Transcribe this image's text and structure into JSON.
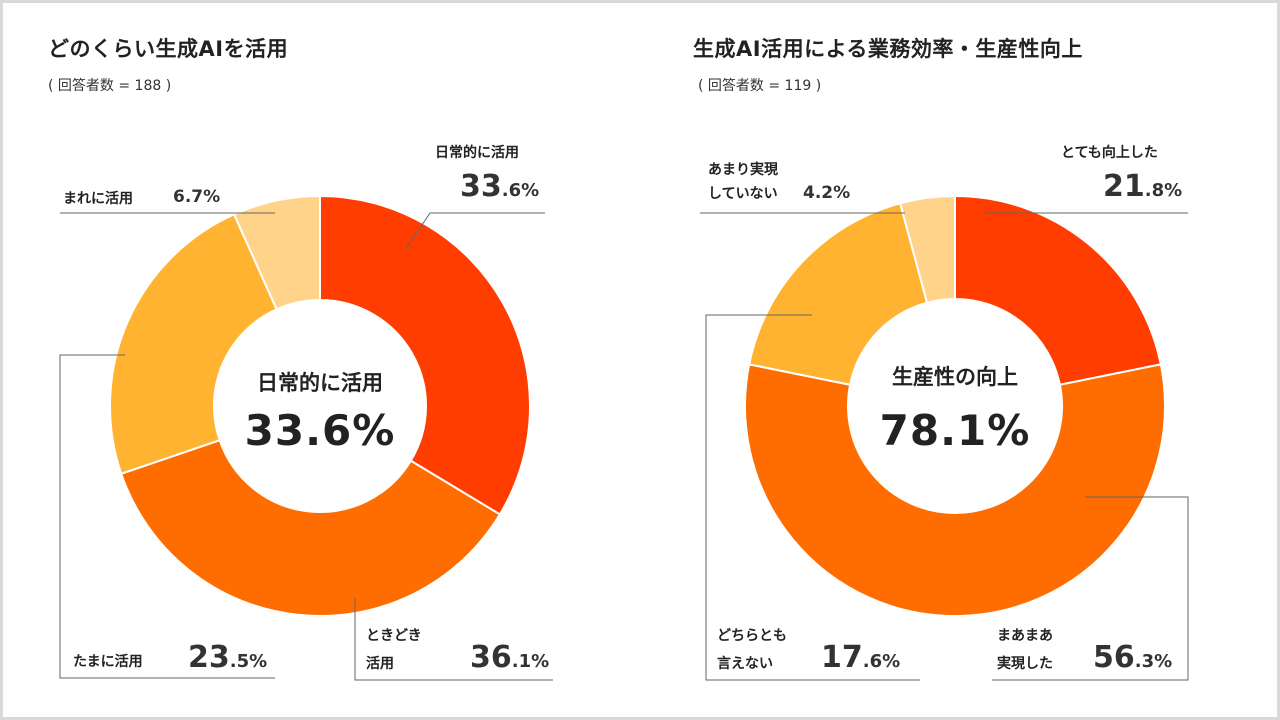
{
  "colors": {
    "c1": "#FF3D00",
    "c2": "#FF6D00",
    "c3": "#FFB330",
    "c4": "#FFD48A",
    "line": "#666666"
  },
  "chart_data": [
    {
      "type": "pie",
      "title": "どのくらい生成AIを活用",
      "subtitle": "( 回答者数 = 188 )",
      "center_label": "日常的に活用",
      "center_value": "33.6%",
      "slices": [
        {
          "label": "日常的に活用",
          "value": 33.6,
          "int": "33",
          "dec": ".6%"
        },
        {
          "label": "ときどき\n活用",
          "label_lines": [
            "ときどき",
            "活用"
          ],
          "value": 36.1,
          "int": "36",
          "dec": ".1%"
        },
        {
          "label": "たまに活用",
          "value": 23.5,
          "int": "23",
          "dec": ".5%"
        },
        {
          "label": "まれに活用",
          "value": 6.7,
          "text": "6.7%"
        }
      ]
    },
    {
      "type": "pie",
      "title": "生成AI活用による業務効率・生産性向上",
      "subtitle": "( 回答者数 = 119 )",
      "center_label": "生産性の向上",
      "center_value": "78.1%",
      "slices": [
        {
          "label": "とても向上した",
          "value": 21.8,
          "int": "21",
          "dec": ".8%"
        },
        {
          "label": "まあまあ\n実現した",
          "label_lines": [
            "まあまあ",
            "実現した"
          ],
          "value": 56.3,
          "int": "56",
          "dec": ".3%"
        },
        {
          "label": "どちらとも\n言えない",
          "label_lines": [
            "どちらとも",
            "言えない"
          ],
          "value": 17.6,
          "int": "17",
          "dec": ".6%"
        },
        {
          "label": "あまり実現\nしていない",
          "label_lines": [
            "あまり実現",
            "していない"
          ],
          "value": 4.2,
          "text": "4.2%"
        }
      ]
    }
  ]
}
